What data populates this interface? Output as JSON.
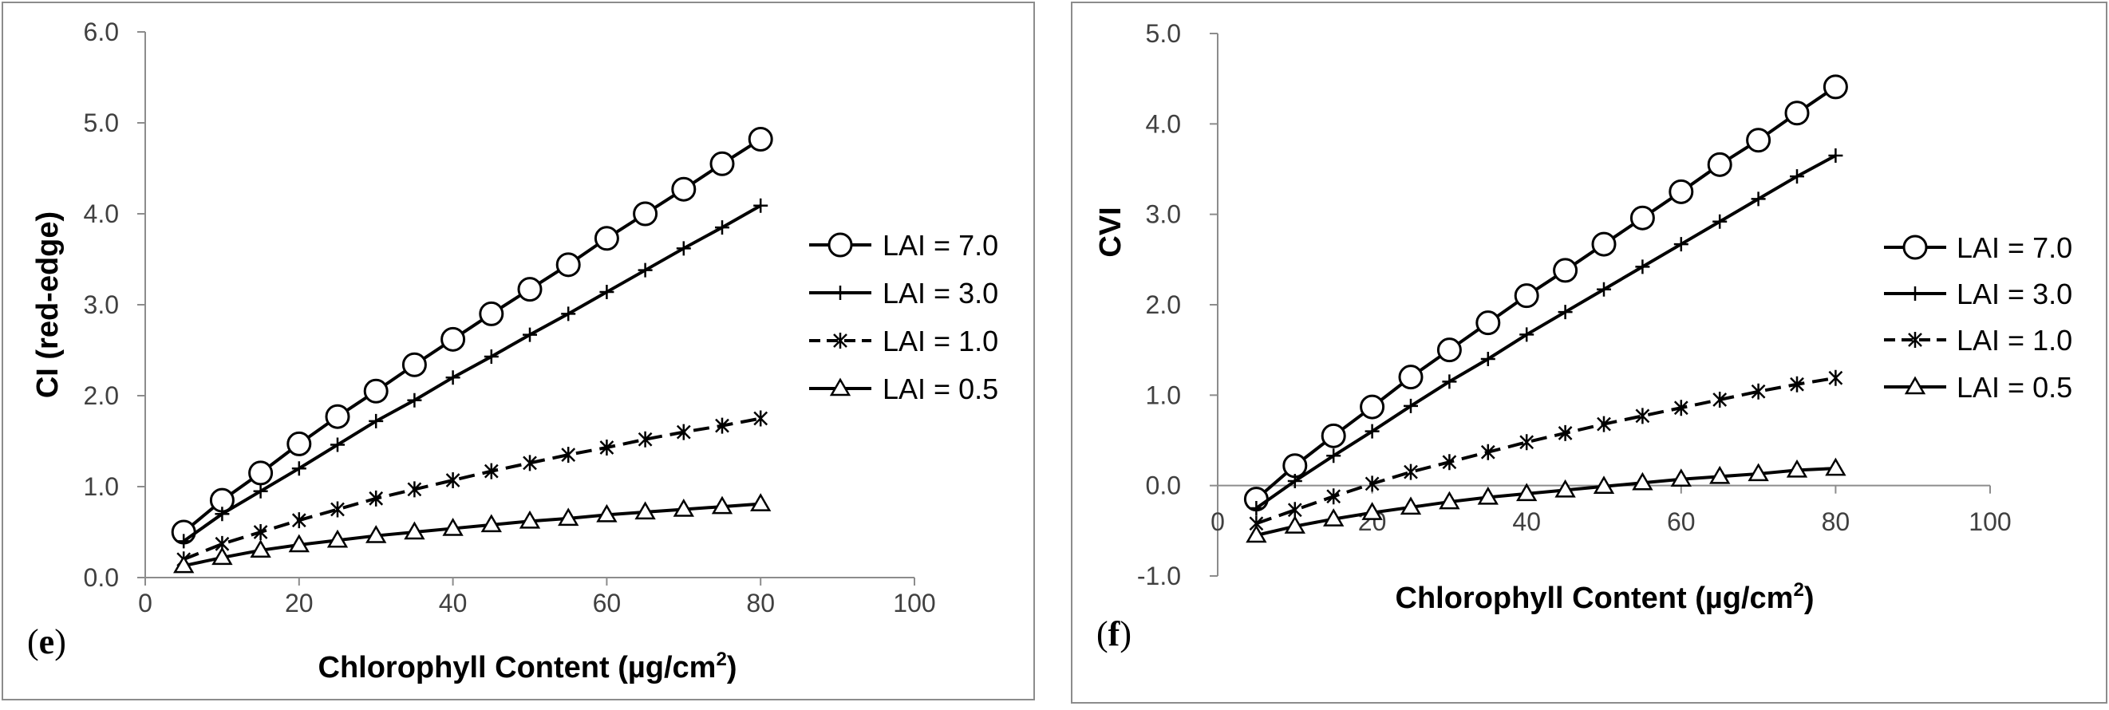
{
  "chart_data": [
    {
      "type": "line",
      "panel_label": "(e)",
      "panel_letter": "e",
      "title": "",
      "xlabel": "Chlorophyll Content (µg/cm",
      "xlabel_sup": "2",
      "xlabel_close": ")",
      "ylabel": "CI (red-edge)",
      "xlim": [
        0,
        100
      ],
      "ylim": [
        0,
        6
      ],
      "x_ticks": [
        "0",
        "20",
        "40",
        "60",
        "80",
        "100"
      ],
      "y_ticks": [
        "0.0",
        "1.0",
        "2.0",
        "3.0",
        "4.0",
        "5.0",
        "6.0"
      ],
      "legend_position": "right",
      "x": [
        5,
        10,
        15,
        20,
        25,
        30,
        35,
        40,
        45,
        50,
        55,
        60,
        65,
        70,
        75,
        80
      ],
      "series": [
        {
          "name": "LAI = 7.0",
          "marker": "circle",
          "dash": "solid",
          "values": [
            0.5,
            0.85,
            1.15,
            1.47,
            1.77,
            2.05,
            2.34,
            2.62,
            2.9,
            3.17,
            3.44,
            3.73,
            4.0,
            4.27,
            4.55,
            4.82
          ]
        },
        {
          "name": "LAI = 3.0",
          "marker": "plus",
          "dash": "solid",
          "values": [
            0.4,
            0.7,
            0.95,
            1.2,
            1.46,
            1.72,
            1.95,
            2.2,
            2.43,
            2.67,
            2.9,
            3.14,
            3.38,
            3.62,
            3.85,
            4.09
          ]
        },
        {
          "name": "LAI = 1.0",
          "marker": "asterisk",
          "dash": "dashed",
          "values": [
            0.2,
            0.37,
            0.5,
            0.63,
            0.75,
            0.87,
            0.97,
            1.07,
            1.17,
            1.26,
            1.35,
            1.43,
            1.52,
            1.6,
            1.67,
            1.75
          ]
        },
        {
          "name": "LAI = 0.5",
          "marker": "triangle",
          "dash": "solid",
          "values": [
            0.13,
            0.22,
            0.3,
            0.36,
            0.41,
            0.46,
            0.5,
            0.54,
            0.58,
            0.62,
            0.65,
            0.69,
            0.72,
            0.75,
            0.78,
            0.81
          ]
        }
      ]
    },
    {
      "type": "line",
      "panel_label": "(f)",
      "panel_letter": "f",
      "title": "",
      "xlabel": "Chlorophyll Content (µg/cm",
      "xlabel_sup": "2",
      "xlabel_close": ")",
      "ylabel": "CVI",
      "xlim": [
        0,
        100
      ],
      "ylim": [
        -1,
        5
      ],
      "x_ticks": [
        "0",
        "20",
        "40",
        "60",
        "80",
        "100"
      ],
      "y_ticks": [
        "-1.0",
        "0.0",
        "1.0",
        "2.0",
        "3.0",
        "4.0",
        "5.0"
      ],
      "legend_position": "right",
      "x": [
        5,
        10,
        15,
        20,
        25,
        30,
        35,
        40,
        45,
        50,
        55,
        60,
        65,
        70,
        75,
        80
      ],
      "series": [
        {
          "name": "LAI = 7.0",
          "marker": "circle",
          "dash": "solid",
          "values": [
            -0.15,
            0.22,
            0.55,
            0.87,
            1.2,
            1.5,
            1.8,
            2.1,
            2.38,
            2.67,
            2.96,
            3.25,
            3.55,
            3.82,
            4.12,
            4.41
          ]
        },
        {
          "name": "LAI = 3.0",
          "marker": "plus",
          "dash": "solid",
          "values": [
            -0.25,
            0.05,
            0.33,
            0.6,
            0.88,
            1.15,
            1.4,
            1.67,
            1.92,
            2.17,
            2.42,
            2.67,
            2.92,
            3.17,
            3.42,
            3.65
          ]
        },
        {
          "name": "LAI = 1.0",
          "marker": "asterisk",
          "dash": "dashed",
          "values": [
            -0.42,
            -0.27,
            -0.12,
            0.02,
            0.15,
            0.26,
            0.37,
            0.48,
            0.58,
            0.68,
            0.77,
            0.86,
            0.95,
            1.04,
            1.12,
            1.19
          ]
        },
        {
          "name": "LAI = 0.5",
          "marker": "triangle",
          "dash": "solid",
          "values": [
            -0.55,
            -0.45,
            -0.37,
            -0.3,
            -0.24,
            -0.18,
            -0.13,
            -0.09,
            -0.05,
            -0.01,
            0.03,
            0.07,
            0.1,
            0.13,
            0.17,
            0.19
          ]
        }
      ]
    }
  ]
}
